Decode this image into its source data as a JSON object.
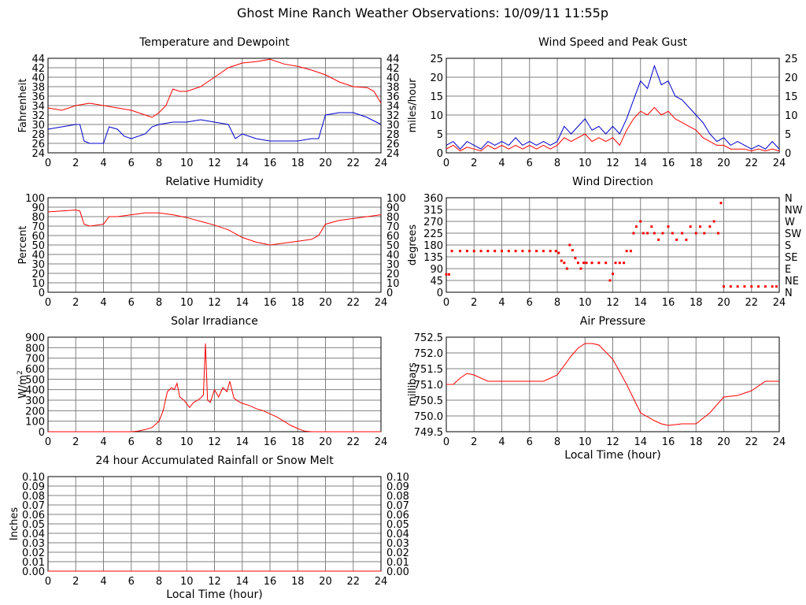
{
  "page": {
    "title": "Ghost Mine Ranch Weather Observations: 10/09/11 11:55p"
  },
  "colors": {
    "temperature": "#ff0000",
    "dewpoint": "#0000cc",
    "grid": "#808080"
  },
  "chart_data": [
    {
      "id": "temp",
      "type": "line",
      "title": "Temperature and Dewpoint",
      "ylabel": "Fahrenheit",
      "xlabel": "",
      "xlim": [
        0,
        24
      ],
      "xticks": [
        0,
        2,
        4,
        6,
        8,
        10,
        12,
        14,
        16,
        18,
        20,
        22,
        24
      ],
      "ylim": [
        24,
        44
      ],
      "yticks": [
        24,
        26,
        28,
        30,
        32,
        34,
        36,
        38,
        40,
        42,
        44
      ],
      "right_ticks": [
        "24",
        "26",
        "28",
        "30",
        "32",
        "34",
        "36",
        "38",
        "40",
        "42",
        "44"
      ],
      "series": [
        {
          "color": "#ff0000",
          "x": [
            0,
            1,
            2,
            3,
            4,
            5,
            6,
            7,
            7.5,
            8,
            8.5,
            9,
            9.5,
            10,
            11,
            12,
            13,
            14,
            15,
            16,
            17,
            18,
            19,
            20,
            21,
            22,
            23,
            23.5,
            24
          ],
          "y": [
            33.5,
            33,
            34,
            34.5,
            34,
            33.5,
            33,
            32,
            31.5,
            32.5,
            34,
            37.5,
            37,
            37,
            38,
            40,
            42,
            43,
            43.3,
            43.8,
            42.8,
            42.3,
            41.5,
            40.5,
            39,
            38,
            37.8,
            37,
            34.5
          ]
        },
        {
          "color": "#0000cc",
          "x": [
            0,
            1,
            2,
            2.3,
            2.6,
            3,
            4,
            4.4,
            5,
            5.5,
            6,
            7,
            7.5,
            8,
            9,
            10,
            11,
            12,
            13,
            13.5,
            14,
            15,
            16,
            17,
            18,
            19,
            19.5,
            20,
            21,
            22,
            23,
            24
          ],
          "y": [
            29,
            29.5,
            30,
            30,
            26.5,
            26,
            26,
            29.5,
            29,
            27.5,
            27,
            28,
            29.5,
            30,
            30.5,
            30.5,
            31,
            30.5,
            30,
            27,
            28,
            27,
            26.5,
            26.5,
            26.5,
            27,
            27,
            32,
            32.5,
            32.5,
            31.5,
            30
          ]
        }
      ]
    },
    {
      "id": "wind",
      "type": "line",
      "title": "Wind Speed and Peak Gust",
      "ylabel": "miles/hour",
      "xlabel": "",
      "xlim": [
        0,
        24
      ],
      "xticks": [
        0,
        2,
        4,
        6,
        8,
        10,
        12,
        14,
        16,
        18,
        20,
        22,
        24
      ],
      "ylim": [
        0,
        25
      ],
      "yticks": [
        0,
        5,
        10,
        15,
        20,
        25
      ],
      "right_ticks": [
        "0",
        "5",
        "10",
        "15",
        "20",
        "25"
      ],
      "series": [
        {
          "color": "#0000cc",
          "x": [
            0,
            0.5,
            1,
            1.5,
            2,
            2.5,
            3,
            3.5,
            4,
            4.5,
            5,
            5.5,
            6,
            6.5,
            7,
            7.5,
            8,
            8.5,
            9,
            9.5,
            10,
            10.5,
            11,
            11.5,
            12,
            12.5,
            13,
            13.5,
            14,
            14.5,
            15,
            15.5,
            16,
            16.5,
            17,
            17.5,
            18,
            18.5,
            19,
            19.5,
            20,
            20.5,
            21,
            21.5,
            22,
            22.5,
            23,
            23.5,
            24
          ],
          "y": [
            2,
            3,
            1,
            3,
            2,
            1,
            3,
            2,
            3,
            2,
            4,
            2,
            3,
            2,
            3,
            2,
            3,
            7,
            5,
            7,
            9,
            6,
            7,
            5,
            7,
            5,
            9,
            14,
            19,
            17,
            23,
            18,
            19,
            15,
            14,
            12,
            10,
            8,
            5,
            3,
            4,
            2,
            3,
            2,
            1,
            2,
            1,
            3,
            1
          ]
        },
        {
          "color": "#ff0000",
          "x": [
            0,
            0.5,
            1,
            1.5,
            2,
            2.5,
            3,
            3.5,
            4,
            4.5,
            5,
            5.5,
            6,
            6.5,
            7,
            7.5,
            8,
            8.5,
            9,
            9.5,
            10,
            10.5,
            11,
            11.5,
            12,
            12.5,
            13,
            13.5,
            14,
            14.5,
            15,
            15.5,
            16,
            16.5,
            17,
            17.5,
            18,
            18.5,
            19,
            19.5,
            20,
            20.5,
            21,
            21.5,
            22,
            22.5,
            23,
            23.5,
            24
          ],
          "y": [
            1,
            2,
            0.5,
            1.5,
            1,
            0.5,
            2,
            1,
            2,
            1,
            2,
            1,
            2,
            1,
            2,
            1,
            2,
            4,
            3,
            4,
            5,
            3,
            4,
            3,
            4,
            2,
            6,
            9,
            11,
            10,
            12,
            10,
            11,
            9,
            8,
            7,
            6,
            4,
            3,
            2,
            2,
            1,
            1,
            1,
            0.5,
            1,
            0.5,
            1,
            0.5
          ]
        }
      ]
    },
    {
      "id": "rh",
      "type": "line",
      "title": "Relative Humidity",
      "ylabel": "Percent",
      "xlabel": "",
      "xlim": [
        0,
        24
      ],
      "xticks": [
        0,
        2,
        4,
        6,
        8,
        10,
        12,
        14,
        16,
        18,
        20,
        22,
        24
      ],
      "ylim": [
        0,
        100
      ],
      "yticks": [
        0,
        10,
        20,
        30,
        40,
        50,
        60,
        70,
        80,
        90,
        100
      ],
      "right_ticks": [
        "0",
        "10",
        "20",
        "30",
        "40",
        "50",
        "60",
        "70",
        "80",
        "90",
        "100"
      ],
      "series": [
        {
          "color": "#ff0000",
          "x": [
            0,
            1,
            2,
            2.3,
            2.6,
            3,
            4,
            4.4,
            5,
            6,
            7,
            8,
            9,
            10,
            11,
            12,
            13,
            14,
            15,
            16,
            17,
            18,
            19,
            19.5,
            20,
            21,
            22,
            23,
            24
          ],
          "y": [
            85,
            86,
            87,
            86,
            72,
            70,
            72,
            80,
            80,
            82,
            84,
            84,
            82,
            79,
            75,
            71,
            66,
            58,
            53,
            50,
            52,
            54,
            56,
            60,
            72,
            76,
            78,
            80,
            82
          ]
        }
      ]
    },
    {
      "id": "winddir",
      "type": "scatter",
      "title": "Wind Direction",
      "ylabel": "degrees",
      "xlabel": "",
      "xlim": [
        0,
        24
      ],
      "xticks": [
        0,
        2,
        4,
        6,
        8,
        10,
        12,
        14,
        16,
        18,
        20,
        22,
        24
      ],
      "ylim": [
        0,
        360
      ],
      "yticks": [
        0,
        45,
        90,
        135,
        180,
        225,
        270,
        315,
        360
      ],
      "right_ticks": [
        "N",
        "NE",
        "E",
        "SE",
        "S",
        "SW",
        "W",
        "NW",
        "N"
      ],
      "series": [
        {
          "color": "#ff0000",
          "x": [
            0,
            0.2,
            0.4,
            1,
            1.5,
            2,
            2.5,
            3,
            3.5,
            4,
            4.5,
            5,
            5.5,
            6,
            6.5,
            7,
            7.5,
            7.9,
            8.1,
            8.3,
            8.5,
            8.7,
            8.9,
            9.1,
            9.3,
            9.5,
            9.7,
            9.9,
            10.1,
            10.5,
            11,
            11.5,
            11.8,
            12,
            12.2,
            12.5,
            12.8,
            13,
            13.3,
            13.5,
            13.7,
            14,
            14.2,
            14.5,
            14.8,
            15,
            15.3,
            15.6,
            16,
            16.3,
            16.6,
            17,
            17.3,
            17.6,
            18,
            18.3,
            18.6,
            19,
            19.3,
            19.6,
            19.8,
            20,
            20.5,
            21,
            21.5,
            22,
            22.5,
            23,
            23.5,
            23.8
          ],
          "y": [
            68,
            68,
            157,
            157,
            157,
            157,
            157,
            157,
            157,
            157,
            157,
            157,
            157,
            157,
            157,
            157,
            157,
            157,
            150,
            120,
            112,
            90,
            180,
            160,
            130,
            112,
            90,
            112,
            112,
            112,
            112,
            112,
            45,
            70,
            112,
            112,
            112,
            157,
            157,
            225,
            250,
            270,
            225,
            225,
            250,
            225,
            200,
            225,
            250,
            225,
            200,
            225,
            200,
            250,
            225,
            250,
            225,
            250,
            270,
            225,
            340,
            22,
            22,
            22,
            22,
            22,
            22,
            22,
            22,
            22
          ]
        }
      ]
    },
    {
      "id": "solar",
      "type": "line",
      "title": "Solar Irradiance",
      "ylabel": "W/m2",
      "xlabel": "",
      "xlim": [
        0,
        24
      ],
      "xticks": [
        0,
        2,
        4,
        6,
        8,
        10,
        12,
        14,
        16,
        18,
        20,
        22,
        24
      ],
      "ylim": [
        0,
        900
      ],
      "yticks": [
        0,
        100,
        200,
        300,
        400,
        500,
        600,
        700,
        800,
        900
      ],
      "series": [
        {
          "color": "#ff0000",
          "x": [
            0,
            6,
            6.5,
            7,
            7.5,
            8,
            8.3,
            8.6,
            8.9,
            9.1,
            9.3,
            9.5,
            9.8,
            10.2,
            10.5,
            10.8,
            11,
            11.2,
            11.35,
            11.5,
            11.7,
            12,
            12.3,
            12.6,
            12.9,
            13.1,
            13.4,
            13.7,
            14,
            14.5,
            15,
            15.5,
            16,
            16.5,
            17,
            17.5,
            18,
            18.5,
            19,
            24
          ],
          "y": [
            0,
            0,
            5,
            20,
            40,
            100,
            200,
            380,
            420,
            400,
            460,
            330,
            300,
            230,
            280,
            300,
            320,
            350,
            840,
            300,
            280,
            400,
            330,
            420,
            380,
            480,
            320,
            290,
            270,
            250,
            220,
            200,
            170,
            140,
            100,
            60,
            30,
            5,
            0,
            0
          ]
        }
      ]
    },
    {
      "id": "pressure",
      "type": "line",
      "title": "Air Pressure",
      "ylabel": "millibars",
      "xlabel": "Local Time (hour)",
      "xlim": [
        0,
        24
      ],
      "xticks": [
        0,
        2,
        4,
        6,
        8,
        10,
        12,
        14,
        16,
        18,
        20,
        22,
        24
      ],
      "ylim": [
        749.5,
        752.5
      ],
      "yticks": [
        749.5,
        750.0,
        750.5,
        751.0,
        751.5,
        752.0,
        752.5
      ],
      "series": [
        {
          "color": "#ff0000",
          "x": [
            0,
            0.5,
            1,
            1.5,
            2,
            3,
            4,
            5,
            6,
            7,
            8,
            9,
            9.5,
            10,
            10.5,
            11,
            12,
            13,
            14,
            15,
            15.5,
            16,
            17,
            18,
            19,
            20,
            21,
            22,
            23,
            24
          ],
          "y": [
            751.0,
            751.0,
            751.2,
            751.35,
            751.3,
            751.1,
            751.1,
            751.1,
            751.1,
            751.1,
            751.3,
            751.9,
            752.15,
            752.3,
            752.3,
            752.25,
            751.8,
            751.0,
            750.1,
            749.85,
            749.75,
            749.7,
            749.75,
            749.75,
            750.1,
            750.6,
            750.65,
            750.8,
            751.1,
            751.1
          ]
        }
      ]
    },
    {
      "id": "rain",
      "type": "line",
      "title": "24 hour Accumulated Rainfall or Snow Melt",
      "ylabel": "Inches",
      "xlabel": "Local Time (hour)",
      "xlim": [
        0,
        24
      ],
      "xticks": [
        0,
        2,
        4,
        6,
        8,
        10,
        12,
        14,
        16,
        18,
        20,
        22,
        24
      ],
      "ylim": [
        0,
        0.1
      ],
      "yticks": [
        0,
        0.01,
        0.02,
        0.03,
        0.04,
        0.05,
        0.06,
        0.07,
        0.08,
        0.09,
        0.1
      ],
      "right_ticks": [
        "0.00",
        "0.01",
        "0.02",
        "0.03",
        "0.04",
        "0.05",
        "0.06",
        "0.07",
        "0.08",
        "0.09",
        "0.10"
      ],
      "series": [
        {
          "color": "#ff0000",
          "x": [
            0,
            24
          ],
          "y": [
            0,
            0
          ]
        }
      ]
    }
  ]
}
